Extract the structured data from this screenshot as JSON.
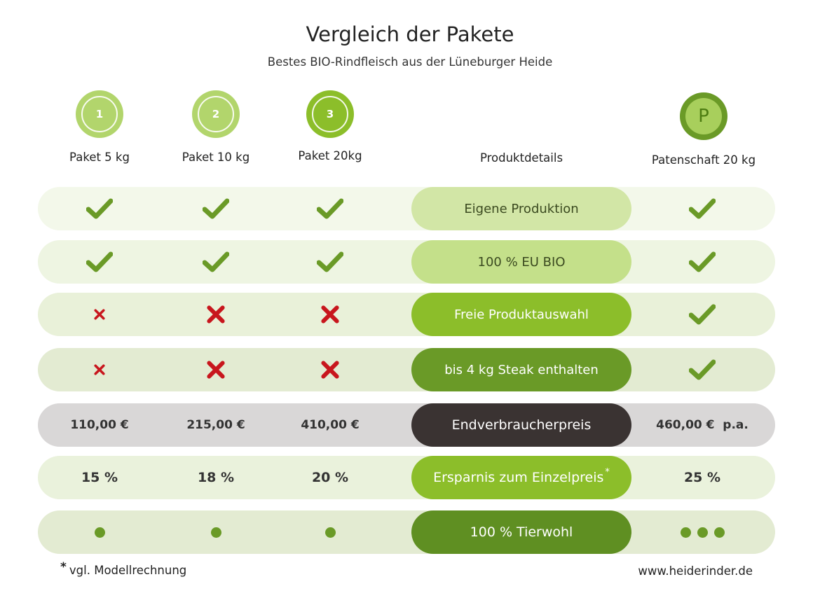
{
  "header": {
    "title": "Vergleich der Pakete",
    "subtitle": "Bestes BIO-Rindfleisch aus der Lüneburger Heide"
  },
  "badges": [
    {
      "label": "1",
      "color": "#b2d56c"
    },
    {
      "label": "2",
      "color": "#b2d56c"
    },
    {
      "label": "3",
      "color": "#8cbe2a"
    },
    {
      "label": "P",
      "color": "#6a9a27"
    }
  ],
  "columns": {
    "paket1": "Paket 5 kg",
    "paket2": "Paket 10 kg",
    "paket3": "Paket 20kg",
    "details": "Produktdetails",
    "patenschaft": "Patenschaft 20 kg"
  },
  "rows": [
    {
      "feature": "Eigene Produktion",
      "values": [
        "check",
        "check",
        "check",
        "check"
      ],
      "row_bg": "#f3f8ea",
      "pill_bg": "#d2e6a6",
      "pill_text": "#3b4a20"
    },
    {
      "feature": "100 % EU BIO",
      "values": [
        "check",
        "check",
        "check",
        "check"
      ],
      "row_bg": "#eef5e2",
      "pill_bg": "#c4e08a",
      "pill_text": "#3b4a20"
    },
    {
      "feature": "Freie Produktauswahl",
      "values": [
        "cross",
        "cross",
        "cross",
        "check"
      ],
      "row_bg": "#e9f1d9",
      "pill_bg": "#8cbe2a",
      "pill_text": "#ffffff"
    },
    {
      "feature": "bis 4 kg Steak enthalten",
      "values": [
        "cross",
        "cross",
        "cross",
        "check"
      ],
      "row_bg": "#e3ebd2",
      "pill_bg": "#6a9a27",
      "pill_text": "#ffffff"
    },
    {
      "feature": "Endverbraucherpreis",
      "values": [
        "110,00 €",
        "215,00 €",
        "410,00 €",
        "460,00 €  p.a."
      ],
      "row_bg": "#d9d7d7",
      "pill_bg": "#3a3332",
      "pill_text": "#ffffff"
    },
    {
      "feature": "Ersparnis zum Einzelpreis",
      "footnote_mark": "*",
      "values": [
        "15 %",
        "18 %",
        "20 %",
        "25 %"
      ],
      "row_bg": "#eaf2dc",
      "pill_bg": "#8cbe2a",
      "pill_text": "#ffffff"
    },
    {
      "feature": "100 % Tierwohl",
      "values": [
        "dot",
        "dot",
        "dot",
        "dots"
      ],
      "row_bg": "#e3ebd2",
      "pill_bg": "#5f8f22",
      "pill_text": "#ffffff"
    }
  ],
  "footer": {
    "footnote_mark": "*",
    "footnote": "vgl. Modellrechnung",
    "website": "www.heiderinder.de"
  },
  "colors": {
    "check": "#6a9a27",
    "cross": "#c8161d"
  }
}
